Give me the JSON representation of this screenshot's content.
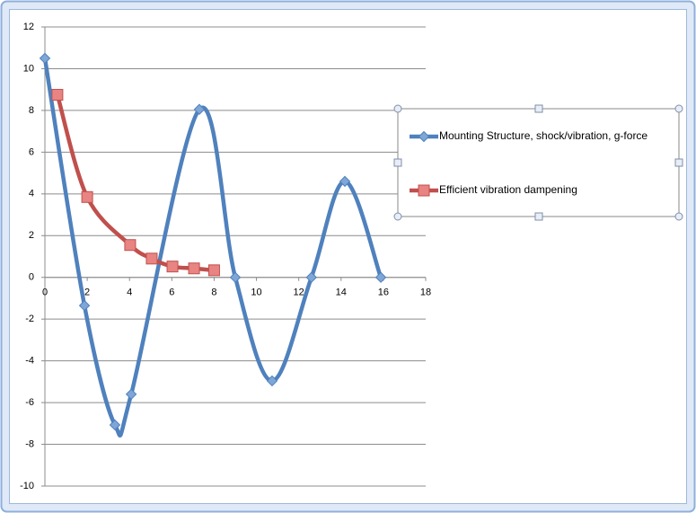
{
  "chart_data": {
    "type": "scatter-smooth",
    "xlim": [
      0,
      18
    ],
    "xticks": [
      0,
      2,
      4,
      6,
      8,
      10,
      12,
      14,
      16,
      18
    ],
    "ylim": [
      -10,
      12
    ],
    "yticks": [
      -10,
      -8,
      -6,
      -4,
      -2,
      0,
      2,
      4,
      6,
      8,
      10,
      12
    ],
    "grid": true,
    "legend": "right",
    "series": [
      {
        "name": "Mounting Structure, shock/vibration, g-force",
        "color": "#4f81bd",
        "marker": "diamond",
        "x": [
          0,
          1.87,
          3.31,
          4.08,
          7.3,
          9.0,
          10.74,
          12.6,
          14.18,
          15.88
        ],
        "values": [
          10.5,
          -1.35,
          -7.07,
          -5.6,
          8.05,
          0,
          -4.96,
          0,
          4.6,
          0
        ]
      },
      {
        "name": "Efficient vibration dampening",
        "color": "#c0504d",
        "marker": "square",
        "x": [
          0.59,
          2.0,
          4.03,
          5.05,
          6.03,
          7.05,
          8.0
        ],
        "values": [
          8.75,
          3.85,
          1.55,
          0.9,
          0.52,
          0.43,
          0.34
        ]
      }
    ]
  }
}
